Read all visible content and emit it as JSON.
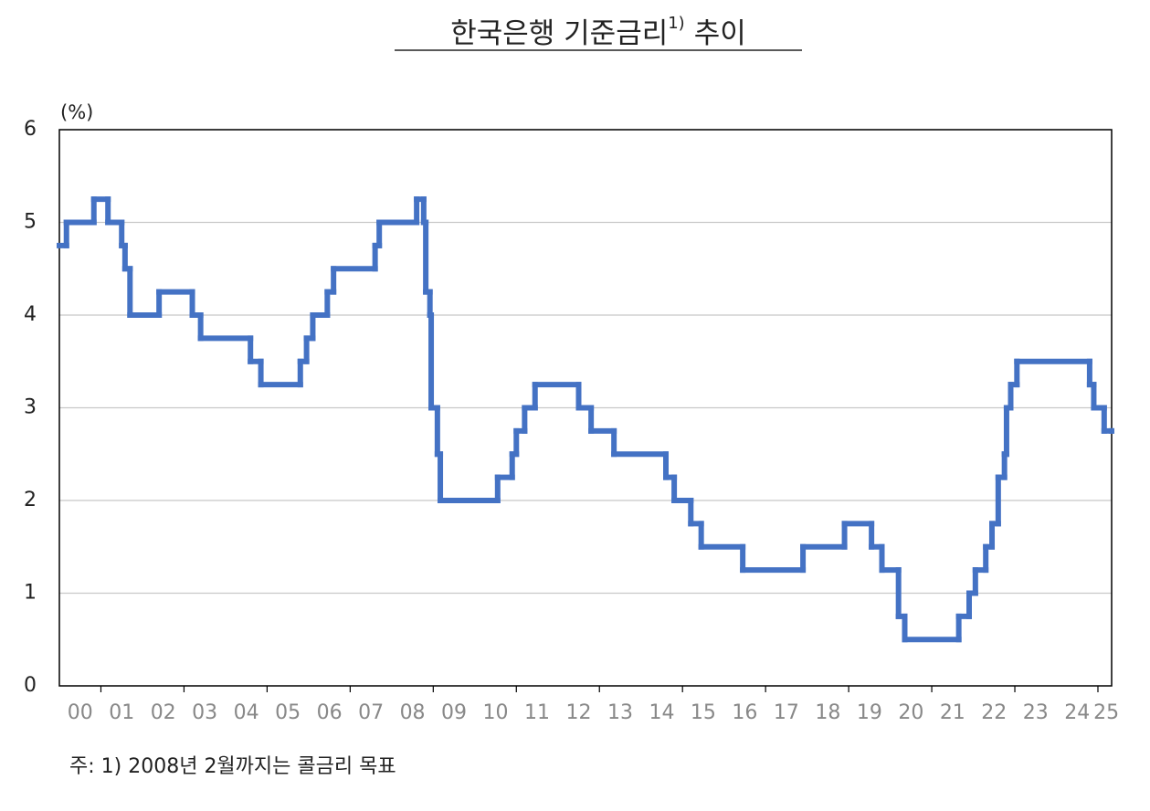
{
  "chart_data": {
    "type": "step-line",
    "title": "한국은행 기준금리",
    "title_superscript": "1)",
    "title_suffix": "추이",
    "y_unit_label": "(%)",
    "footnote": "주: 1) 2008년 2월까지는 콜금리 목표",
    "color": "#4472c4",
    "xlim": [
      2000,
      2025.33
    ],
    "ylim": [
      0,
      6
    ],
    "yticks": [
      0,
      1,
      2,
      3,
      4,
      5,
      6
    ],
    "grid": true,
    "xticks": [
      {
        "value": 2000.5,
        "label": "00"
      },
      {
        "value": 2001.5,
        "label": "01"
      },
      {
        "value": 2002.5,
        "label": "02"
      },
      {
        "value": 2003.5,
        "label": "03"
      },
      {
        "value": 2004.5,
        "label": "04"
      },
      {
        "value": 2005.5,
        "label": "05"
      },
      {
        "value": 2006.5,
        "label": "06"
      },
      {
        "value": 2007.5,
        "label": "07"
      },
      {
        "value": 2008.5,
        "label": "08"
      },
      {
        "value": 2009.5,
        "label": "09"
      },
      {
        "value": 2010.5,
        "label": "10"
      },
      {
        "value": 2011.5,
        "label": "11"
      },
      {
        "value": 2012.5,
        "label": "12"
      },
      {
        "value": 2013.5,
        "label": "13"
      },
      {
        "value": 2014.5,
        "label": "14"
      },
      {
        "value": 2015.5,
        "label": "15"
      },
      {
        "value": 2016.5,
        "label": "16"
      },
      {
        "value": 2017.5,
        "label": "17"
      },
      {
        "value": 2018.5,
        "label": "18"
      },
      {
        "value": 2019.5,
        "label": "19"
      },
      {
        "value": 2020.5,
        "label": "20"
      },
      {
        "value": 2021.5,
        "label": "21"
      },
      {
        "value": 2022.5,
        "label": "22"
      },
      {
        "value": 2023.5,
        "label": "23"
      },
      {
        "value": 2024.5,
        "label": "24"
      },
      {
        "value": 2025.2,
        "label": "25"
      }
    ],
    "x": [
      2000.0,
      2000.17,
      2000.83,
      2001.17,
      2001.5,
      2001.58,
      2001.7,
      2002.4,
      2003.2,
      2003.4,
      2004.6,
      2004.85,
      2005.8,
      2005.95,
      2006.1,
      2006.45,
      2006.6,
      2007.6,
      2007.7,
      2008.6,
      2008.77,
      2008.82,
      2008.92,
      2008.95,
      2009.1,
      2009.17,
      2010.55,
      2010.9,
      2011.0,
      2011.2,
      2011.45,
      2012.5,
      2012.8,
      2013.35,
      2014.6,
      2014.8,
      2015.2,
      2015.45,
      2016.45,
      2017.9,
      2018.9,
      2019.55,
      2019.8,
      2020.2,
      2020.35,
      2021.65,
      2021.9,
      2022.05,
      2022.3,
      2022.45,
      2022.6,
      2022.75,
      2022.8,
      2022.9,
      2023.05,
      2024.8,
      2024.9,
      2025.15,
      2025.33
    ],
    "values": [
      4.75,
      5.0,
      5.25,
      5.0,
      4.75,
      4.5,
      4.0,
      4.25,
      4.0,
      3.75,
      3.5,
      3.25,
      3.5,
      3.75,
      4.0,
      4.25,
      4.5,
      4.75,
      5.0,
      5.25,
      5.0,
      4.25,
      4.0,
      3.0,
      2.5,
      2.0,
      2.25,
      2.5,
      2.75,
      3.0,
      3.25,
      3.0,
      2.75,
      2.5,
      2.25,
      2.0,
      1.75,
      1.5,
      1.25,
      1.5,
      1.75,
      1.5,
      1.25,
      0.75,
      0.5,
      0.75,
      1.0,
      1.25,
      1.5,
      1.75,
      2.25,
      2.5,
      3.0,
      3.25,
      3.5,
      3.25,
      3.0,
      2.75,
      2.75
    ]
  }
}
